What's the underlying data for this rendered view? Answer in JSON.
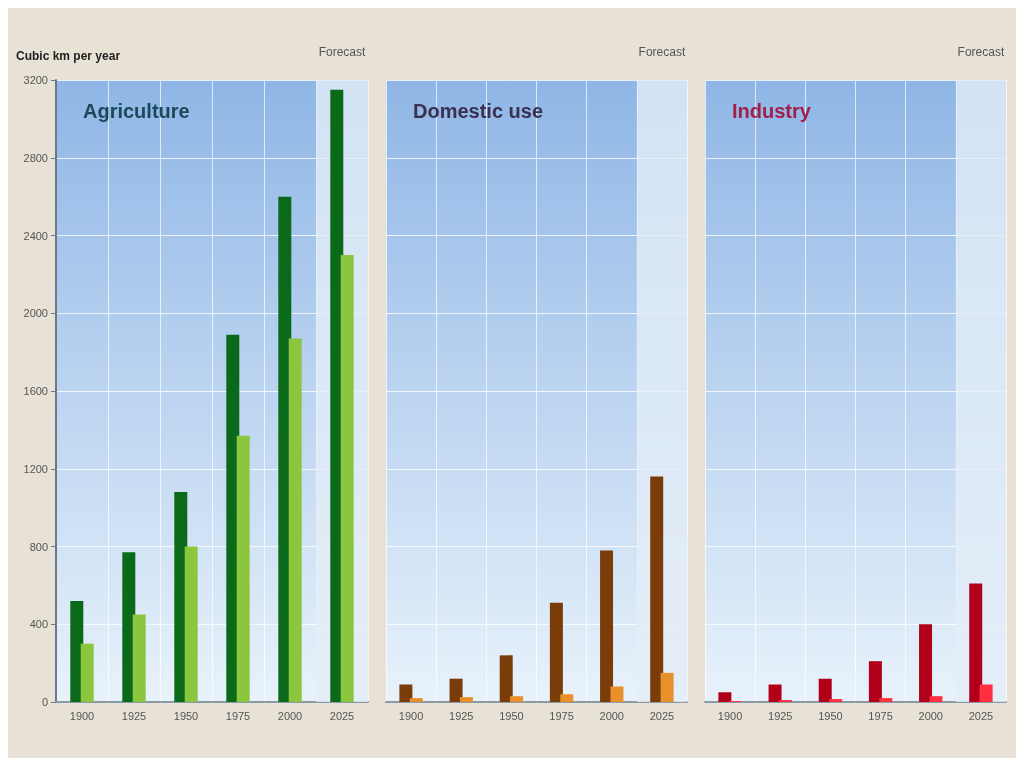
{
  "chart_data": [
    {
      "type": "bar",
      "title": "Agriculture",
      "ylabel": "Cubic km per year",
      "categories": [
        "1900",
        "1925",
        "1950",
        "1975",
        "2000",
        "2025"
      ],
      "series": [
        {
          "color": "#0a6a1a",
          "values": [
            520,
            770,
            1080,
            1890,
            2600,
            3150
          ]
        },
        {
          "color": "#8cc63f",
          "values": [
            300,
            450,
            800,
            1370,
            1870,
            2300
          ]
        }
      ],
      "ylim": [
        0,
        3200
      ],
      "yticks": [
        0,
        400,
        800,
        1200,
        1600,
        2000,
        2400,
        2800,
        3200
      ],
      "grid": true,
      "bands": [
        {
          "axis": "x",
          "from": "2025",
          "to": "2025",
          "label": "Forecast",
          "color": "#e4eef8"
        }
      ]
    },
    {
      "type": "bar",
      "title": "Domestic use",
      "categories": [
        "1900",
        "1925",
        "1950",
        "1975",
        "2000",
        "2025"
      ],
      "series": [
        {
          "color": "#7a3d0a",
          "values": [
            90,
            120,
            240,
            510,
            780,
            1160
          ]
        },
        {
          "color": "#e8902a",
          "values": [
            20,
            25,
            30,
            40,
            80,
            150
          ]
        }
      ],
      "ylim": [
        0,
        3200
      ],
      "yticks": [
        0,
        400,
        800,
        1200,
        1600,
        2000,
        2400,
        2800,
        3200
      ],
      "grid": true,
      "tick_labels": "x",
      "bands": [
        {
          "axis": "x",
          "from": "2025",
          "to": "2025",
          "label": "Forecast",
          "color": "#e4eef8"
        }
      ]
    },
    {
      "type": "bar",
      "title": "Industry",
      "categories": [
        "1900",
        "1925",
        "1950",
        "1975",
        "2000",
        "2025"
      ],
      "series": [
        {
          "color": "#b0001a",
          "values": [
            50,
            90,
            120,
            210,
            400,
            610
          ]
        },
        {
          "color": "#ff3040",
          "values": [
            5,
            10,
            15,
            20,
            30,
            90
          ]
        }
      ],
      "ylim": [
        0,
        3200
      ],
      "yticks": [
        0,
        400,
        800,
        1200,
        1600,
        2000,
        2400,
        2800,
        3200
      ],
      "grid": true,
      "tick_labels": "x",
      "bands": [
        {
          "axis": "x",
          "from": "2025",
          "to": "2025",
          "label": "Forecast",
          "color": "#e4eef8"
        }
      ]
    }
  ]
}
